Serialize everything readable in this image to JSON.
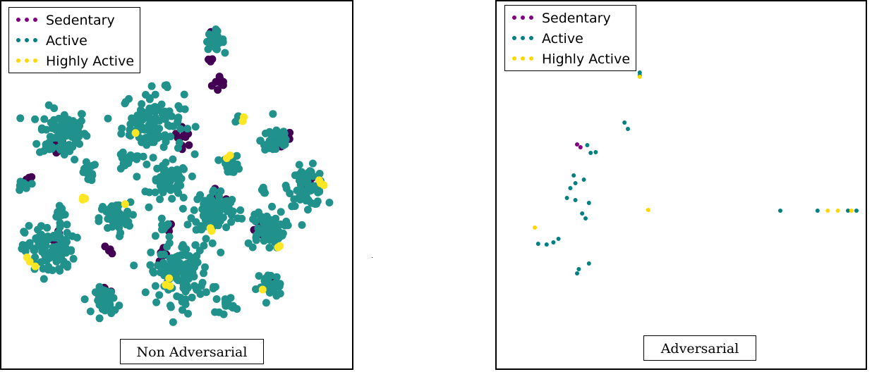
{
  "colors": {
    "sedentary": "#440154",
    "active": "#21918c",
    "highly_active": "#fde725",
    "sedentary_legend": "#800080",
    "highly_active_legend": "#ffd700"
  },
  "chart_data": [
    {
      "type": "scatter",
      "title": "Non Adversarial",
      "legend": {
        "placement": "top-left",
        "entries": [
          "Sedentary",
          "Active",
          "Highly Active"
        ]
      },
      "xlim": [
        0,
        100
      ],
      "ylim": [
        0,
        100
      ],
      "series": [
        {
          "name": "Sedentary",
          "color": "#440154",
          "clusters": [
            {
              "x": 63,
              "y": 78,
              "n": 10,
              "spread": 3
            },
            {
              "x": 15,
              "y": 60,
              "n": 8,
              "spread": 3
            },
            {
              "x": 52,
              "y": 63,
              "n": 10,
              "spread": 3
            },
            {
              "x": 82,
              "y": 62,
              "n": 8,
              "spread": 3
            },
            {
              "x": 88,
              "y": 50,
              "n": 6,
              "spread": 2
            },
            {
              "x": 7,
              "y": 51,
              "n": 3,
              "spread": 1
            },
            {
              "x": 16,
              "y": 35,
              "n": 6,
              "spread": 3
            },
            {
              "x": 31,
              "y": 31,
              "n": 4,
              "spread": 2
            },
            {
              "x": 47,
              "y": 37,
              "n": 4,
              "spread": 2
            },
            {
              "x": 45,
              "y": 30,
              "n": 6,
              "spread": 3
            },
            {
              "x": 62,
              "y": 45,
              "n": 8,
              "spread": 3
            },
            {
              "x": 74,
              "y": 37,
              "n": 6,
              "spread": 3
            },
            {
              "x": 29,
              "y": 20,
              "n": 4,
              "spread": 2
            },
            {
              "x": 77,
              "y": 23,
              "n": 3,
              "spread": 1
            },
            {
              "x": 59,
              "y": 84,
              "n": 3,
              "spread": 2
            },
            {
              "x": 31,
              "y": 84,
              "n": 2,
              "spread": 1
            },
            {
              "x": 60,
              "y": 92,
              "n": 2,
              "spread": 1
            }
          ]
        },
        {
          "name": "Active",
          "color": "#21918c",
          "clusters": [
            {
              "x": 17,
              "y": 64,
              "n": 90,
              "spread": 8
            },
            {
              "x": 43,
              "y": 67,
              "n": 110,
              "spread": 10
            },
            {
              "x": 30,
              "y": 87,
              "n": 8,
              "spread": 1
            },
            {
              "x": 61,
              "y": 90,
              "n": 25,
              "spread": 3
            },
            {
              "x": 68,
              "y": 68,
              "n": 6,
              "spread": 1
            },
            {
              "x": 79,
              "y": 62,
              "n": 40,
              "spread": 5
            },
            {
              "x": 24,
              "y": 53,
              "n": 15,
              "spread": 3
            },
            {
              "x": 35,
              "y": 56,
              "n": 15,
              "spread": 3
            },
            {
              "x": 48,
              "y": 50,
              "n": 60,
              "spread": 6
            },
            {
              "x": 66,
              "y": 55,
              "n": 15,
              "spread": 3
            },
            {
              "x": 88,
              "y": 49,
              "n": 60,
              "spread": 6
            },
            {
              "x": 5,
              "y": 49,
              "n": 12,
              "spread": 2
            },
            {
              "x": 16,
              "y": 42,
              "n": 10,
              "spread": 2
            },
            {
              "x": 32,
              "y": 40,
              "n": 60,
              "spread": 5
            },
            {
              "x": 61,
              "y": 42,
              "n": 90,
              "spread": 7
            },
            {
              "x": 76,
              "y": 37,
              "n": 70,
              "spread": 6
            },
            {
              "x": 75,
              "y": 48,
              "n": 6,
              "spread": 1
            },
            {
              "x": 13,
              "y": 31,
              "n": 100,
              "spread": 8
            },
            {
              "x": 51,
              "y": 25,
              "n": 130,
              "spread": 10
            },
            {
              "x": 77,
              "y": 21,
              "n": 30,
              "spread": 4
            },
            {
              "x": 30,
              "y": 17,
              "n": 40,
              "spread": 4
            },
            {
              "x": 64,
              "y": 16,
              "n": 15,
              "spread": 3
            },
            {
              "x": 16,
              "y": 34,
              "n": 3,
              "spread": 2
            },
            {
              "x": 46,
              "y": 38,
              "n": 6,
              "spread": 2
            }
          ]
        },
        {
          "name": "Highly Active",
          "color": "#fde725",
          "clusters": [
            {
              "x": 69,
              "y": 68,
              "n": 2,
              "spread": 1
            },
            {
              "x": 65,
              "y": 57,
              "n": 2,
              "spread": 1
            },
            {
              "x": 92,
              "y": 49,
              "n": 3,
              "spread": 2
            },
            {
              "x": 23,
              "y": 46,
              "n": 3,
              "spread": 1
            },
            {
              "x": 35,
              "y": 44,
              "n": 1,
              "spread": 0
            },
            {
              "x": 60,
              "y": 37,
              "n": 2,
              "spread": 1
            },
            {
              "x": 80,
              "y": 32,
              "n": 2,
              "spread": 1
            },
            {
              "x": 8,
              "y": 28,
              "n": 3,
              "spread": 2
            },
            {
              "x": 48,
              "y": 21,
              "n": 3,
              "spread": 2
            },
            {
              "x": 75,
              "y": 20,
              "n": 1,
              "spread": 0
            },
            {
              "x": 38,
              "y": 64,
              "n": 1,
              "spread": 0
            }
          ]
        }
      ]
    },
    {
      "type": "scatter",
      "title": "Adversarial",
      "legend": {
        "placement": "top-left",
        "entries": [
          "Sedentary",
          "Active",
          "Highly Active"
        ]
      },
      "xlim": [
        0,
        100
      ],
      "ylim": [
        0,
        100
      ],
      "series": [
        {
          "name": "Sedentary",
          "color": "#800080",
          "points": [
            [
              17.5,
              60.4
            ],
            [
              18.5,
              59.6
            ]
          ]
        },
        {
          "name": "Active",
          "color": "#008080",
          "points": [
            [
              36.0,
              80.0
            ],
            [
              36.0,
              80.8
            ],
            [
              31.5,
              66.6
            ],
            [
              32.5,
              64.8
            ],
            [
              20.5,
              60.2
            ],
            [
              21.5,
              58.0
            ],
            [
              23.0,
              58.2
            ],
            [
              16.5,
              51.6
            ],
            [
              19.5,
              50.4
            ],
            [
              17.0,
              49.4
            ],
            [
              15.5,
              48.0
            ],
            [
              14.5,
              45.2
            ],
            [
              17.0,
              44.6
            ],
            [
              21.0,
              43.8
            ],
            [
              19.0,
              40.8
            ],
            [
              6.0,
              32.2
            ],
            [
              8.5,
              32.0
            ],
            [
              10.5,
              32.6
            ],
            [
              12.0,
              33.6
            ],
            [
              20.0,
              39.4
            ],
            [
              17.5,
              23.8
            ],
            [
              18.0,
              25.0
            ],
            [
              21.0,
              26.6
            ],
            [
              77.5,
              41.6
            ],
            [
              88.5,
              41.6
            ],
            [
              97.5,
              41.6
            ],
            [
              100.0,
              41.6
            ]
          ]
        },
        {
          "name": "Highly Active",
          "color": "#ffd700",
          "points": [
            [
              36.0,
              79.6
            ],
            [
              38.5,
              41.8
            ],
            [
              5.0,
              36.8
            ],
            [
              91.5,
              41.6
            ],
            [
              94.5,
              41.6
            ],
            [
              98.5,
              41.6
            ]
          ]
        }
      ]
    }
  ],
  "legend_labels": {
    "sedentary": "Sedentary",
    "active": "Active",
    "highly_active": "Highly Active"
  },
  "titles": {
    "left": "Non Adversarial",
    "right": "Adversarial"
  }
}
